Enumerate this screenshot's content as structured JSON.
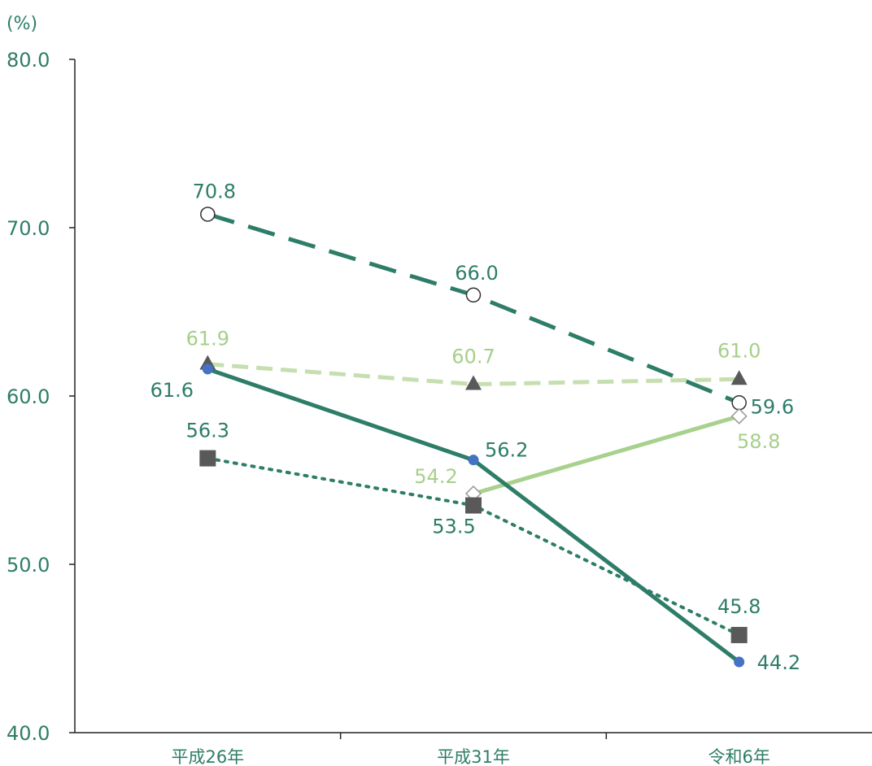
{
  "chart_data": {
    "type": "line",
    "unit_label": "(%)",
    "categories": [
      "平成26年",
      "平成31年",
      "令和6年"
    ],
    "ylim": [
      40.0,
      80.0
    ],
    "yticks": [
      "80.0",
      "70.0",
      "60.0",
      "50.0",
      "40.0"
    ],
    "grid": false,
    "legend": "none",
    "series": [
      {
        "values": [
          70.8,
          66.0,
          59.6
        ],
        "color": "#2E7D68",
        "line": "long-dash",
        "marker": "open-circle",
        "labels": [
          "70.8",
          "66.0",
          "59.6"
        ]
      },
      {
        "values": [
          61.9,
          60.7,
          61.0
        ],
        "color": "#C5DFB0",
        "line": "dash",
        "marker": "gray-triangle",
        "labels": [
          "61.9",
          "60.7",
          "61.0"
        ],
        "label_color": "#A6CF8A"
      },
      {
        "values": [
          61.6,
          56.2,
          44.2
        ],
        "color": "#2E7D68",
        "line": "solid",
        "marker": "blue-dot",
        "labels": [
          "61.6",
          "56.2",
          "44.2"
        ]
      },
      {
        "values": [
          56.3,
          53.5,
          45.8
        ],
        "color": "#2E7D68",
        "line": "dotted",
        "marker": "gray-square",
        "labels": [
          "56.3",
          "53.5",
          "45.8"
        ]
      },
      {
        "values": [
          null,
          54.2,
          58.8
        ],
        "color": "#A8D18D",
        "line": "solid",
        "marker": "open-diamond",
        "labels": [
          "",
          "54.2",
          "58.8"
        ],
        "label_color": "#A6CF8A"
      }
    ]
  },
  "colors": {
    "axis_text": "#2E7D68",
    "axis_line": "#222222",
    "marker_gray": "#595959",
    "marker_blue": "#4472C4"
  }
}
